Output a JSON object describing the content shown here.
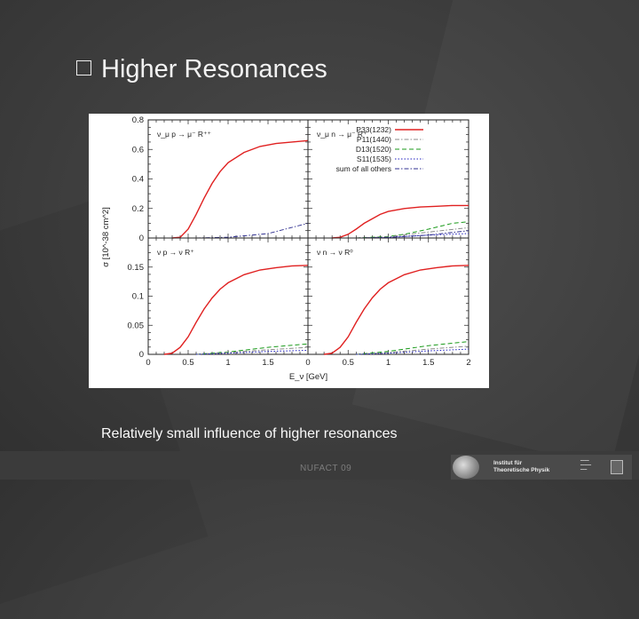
{
  "slide": {
    "bullet_icon": "hollow-square-bullet",
    "title": "Higher Resonances",
    "caption": "Relatively small influence of higher resonances",
    "footer": "NUFACT 09"
  },
  "logo": {
    "text_line1": "Institut für",
    "text_line2": "Theoretische Physik"
  },
  "chart_data": {
    "type": "line",
    "xlabel": "E_ν [GeV]",
    "ylabel": "σ [10^-38 cm^2]",
    "xlim": [
      0,
      2
    ],
    "x_ticks": [
      "0",
      "0.5",
      "1",
      "1.5",
      "2"
    ],
    "grid": false,
    "legend": {
      "placement": "top-right panel",
      "entries": [
        {
          "label": "P33(1232)",
          "color": "#e02020",
          "style": "solid"
        },
        {
          "label": "P11(1440)",
          "color": "#8c8c8c",
          "style": "dash-dot"
        },
        {
          "label": "D13(1520)",
          "color": "#1a9a1a",
          "style": "dashed"
        },
        {
          "label": "S11(1535)",
          "color": "#2020c0",
          "style": "dotted"
        },
        {
          "label": "sum of all others",
          "color": "#303090",
          "style": "dash-dot"
        }
      ]
    },
    "panels": [
      {
        "label": "ν_μ p → μ⁻ R⁺⁺",
        "ylim": [
          0,
          0.8
        ],
        "y_ticks": [
          "0",
          "0.2",
          "0.4",
          "0.6",
          "0.8"
        ],
        "series": [
          {
            "name": "P33(1232)",
            "x": [
              0.3,
              0.4,
              0.5,
              0.6,
              0.7,
              0.8,
              0.9,
              1.0,
              1.2,
              1.4,
              1.6,
              1.8,
              2.0
            ],
            "y": [
              0,
              0.005,
              0.06,
              0.16,
              0.27,
              0.37,
              0.45,
              0.51,
              0.58,
              0.62,
              0.64,
              0.65,
              0.66
            ]
          },
          {
            "name": "sum of all others",
            "x": [
              0.6,
              1.0,
              1.5,
              2.0
            ],
            "y": [
              0,
              0.005,
              0.03,
              0.1
            ]
          }
        ]
      },
      {
        "label": "ν_μ n → μ⁻ R⁺",
        "ylim": [
          0,
          0.8
        ],
        "y_ticks": [],
        "series": [
          {
            "name": "P33(1232)",
            "x": [
              0.3,
              0.4,
              0.5,
              0.6,
              0.7,
              0.8,
              0.9,
              1.0,
              1.2,
              1.4,
              1.6,
              1.8,
              2.0
            ],
            "y": [
              0,
              0.005,
              0.025,
              0.06,
              0.1,
              0.13,
              0.16,
              0.18,
              0.2,
              0.21,
              0.215,
              0.22,
              0.22
            ]
          },
          {
            "name": "D13(1520)",
            "x": [
              0.6,
              1.0,
              1.2,
              1.5,
              1.8,
              2.0
            ],
            "y": [
              0,
              0.01,
              0.025,
              0.06,
              0.1,
              0.11
            ]
          },
          {
            "name": "P11(1440)",
            "x": [
              0.6,
              1.0,
              1.5,
              2.0
            ],
            "y": [
              0,
              0.008,
              0.04,
              0.07
            ]
          },
          {
            "name": "S11(1535)",
            "x": [
              0.6,
              1.0,
              1.5,
              2.0
            ],
            "y": [
              0,
              0.004,
              0.02,
              0.03
            ]
          },
          {
            "name": "sum of all others",
            "x": [
              0.7,
              1.0,
              1.5,
              2.0
            ],
            "y": [
              0,
              0.003,
              0.02,
              0.05
            ]
          }
        ]
      },
      {
        "label": "ν p → ν R⁺",
        "ylim": [
          0,
          0.2
        ],
        "y_ticks": [
          "0",
          "0.05",
          "0.1",
          "0.15"
        ],
        "series": [
          {
            "name": "P33(1232)",
            "x": [
              0.2,
              0.3,
              0.4,
              0.5,
              0.6,
              0.7,
              0.8,
              0.9,
              1.0,
              1.2,
              1.4,
              1.6,
              1.8,
              2.0
            ],
            "y": [
              0,
              0.002,
              0.012,
              0.03,
              0.055,
              0.078,
              0.097,
              0.112,
              0.123,
              0.137,
              0.145,
              0.149,
              0.152,
              0.153
            ]
          },
          {
            "name": "D13(1520)",
            "x": [
              0.6,
              1.0,
              1.5,
              2.0
            ],
            "y": [
              0,
              0.004,
              0.012,
              0.018
            ]
          },
          {
            "name": "P11(1440)",
            "x": [
              0.6,
              1.0,
              1.5,
              2.0
            ],
            "y": [
              0,
              0.003,
              0.008,
              0.012
            ]
          },
          {
            "name": "S11(1535)",
            "x": [
              0.6,
              1.0,
              1.5,
              2.0
            ],
            "y": [
              0,
              0.002,
              0.005,
              0.007
            ]
          }
        ]
      },
      {
        "label": "ν n → ν R⁰",
        "ylim": [
          0,
          0.2
        ],
        "y_ticks": [],
        "series": [
          {
            "name": "P33(1232)",
            "x": [
              0.2,
              0.3,
              0.4,
              0.5,
              0.6,
              0.7,
              0.8,
              0.9,
              1.0,
              1.2,
              1.4,
              1.6,
              1.8,
              2.0
            ],
            "y": [
              0,
              0.002,
              0.012,
              0.03,
              0.055,
              0.078,
              0.097,
              0.112,
              0.123,
              0.137,
              0.145,
              0.149,
              0.152,
              0.153
            ]
          },
          {
            "name": "D13(1520)",
            "x": [
              0.6,
              1.0,
              1.5,
              2.0
            ],
            "y": [
              0,
              0.005,
              0.015,
              0.022
            ]
          },
          {
            "name": "P11(1440)",
            "x": [
              0.6,
              1.0,
              1.5,
              2.0
            ],
            "y": [
              0,
              0.003,
              0.009,
              0.014
            ]
          },
          {
            "name": "S11(1535)",
            "x": [
              0.6,
              1.0,
              1.5,
              2.0
            ],
            "y": [
              0,
              0.002,
              0.006,
              0.009
            ]
          }
        ]
      }
    ]
  }
}
